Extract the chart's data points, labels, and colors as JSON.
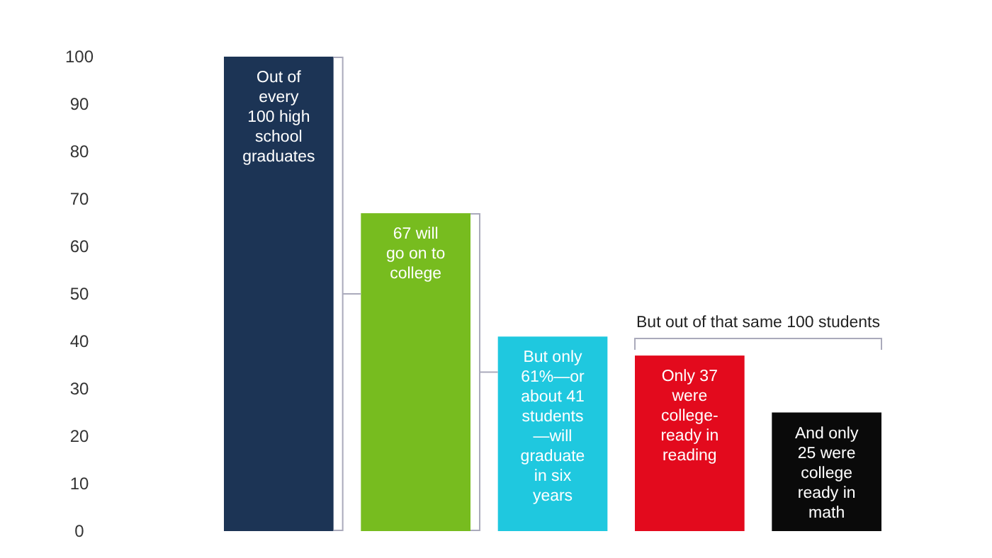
{
  "chart_data": {
    "type": "bar",
    "categories": [
      null,
      null,
      null,
      null,
      null
    ],
    "values": [
      100,
      67,
      41,
      37,
      25
    ],
    "colors": [
      "#1c3455",
      "#77bc1f",
      "#1fc8df",
      "#e30a1d",
      "#0a0a0a"
    ],
    "ylim": [
      0,
      100
    ],
    "yticks": [
      0,
      10,
      20,
      30,
      40,
      50,
      60,
      70,
      80,
      90,
      100
    ],
    "grid": false,
    "annotations": [
      "Out of\nevery\n100 high\nschool\ngraduates",
      "67 will\ngo on to\ncollege",
      "But only\n61%—or\nabout 41\nstudents\n—will\ngraduate\nin six\nyears",
      "Only 37\nwere\ncollege-\nready in\nreading",
      "And only\n25 were\ncollege\nready in\nmath",
      "But out of that same 100 students"
    ]
  }
}
